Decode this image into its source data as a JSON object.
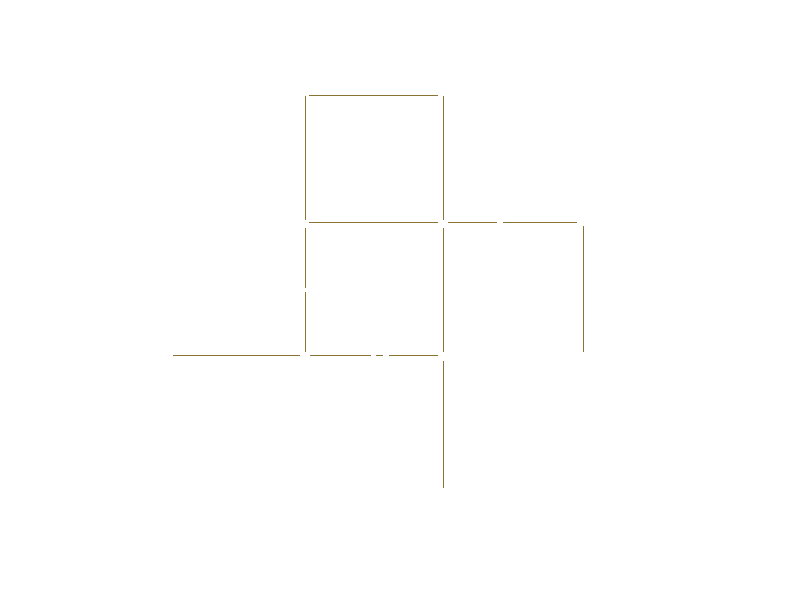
{
  "board": {
    "line_color": "#8b7335",
    "background_color": "#ffffff"
  }
}
